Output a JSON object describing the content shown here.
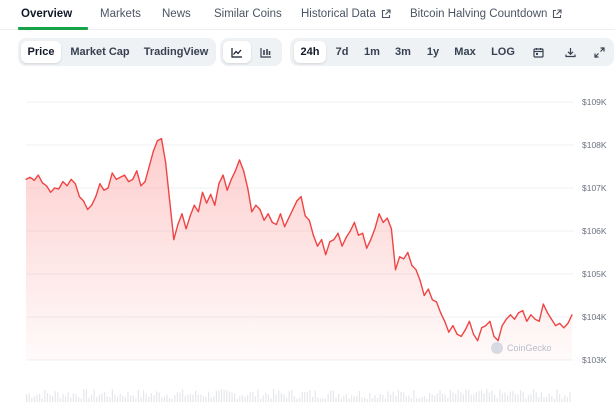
{
  "nav": {
    "tabs": [
      {
        "label": "Overview",
        "active": true
      },
      {
        "label": "Markets"
      },
      {
        "label": "News"
      },
      {
        "label": "Similar Coins"
      },
      {
        "label": "Historical Data",
        "external": true
      },
      {
        "label": "Bitcoin Halving Countdown",
        "external": true
      }
    ]
  },
  "toolbar": {
    "metric_tabs": [
      {
        "label": "Price",
        "active": true
      },
      {
        "label": "Market Cap"
      },
      {
        "label": "TradingView"
      }
    ],
    "chart_style": [
      {
        "icon": "line-chart-icon",
        "active": true
      },
      {
        "icon": "candlestick-chart-icon"
      }
    ],
    "ranges": [
      {
        "label": "24h",
        "active": true
      },
      {
        "label": "7d"
      },
      {
        "label": "1m"
      },
      {
        "label": "3m"
      },
      {
        "label": "1y"
      },
      {
        "label": "Max"
      },
      {
        "label": "LOG"
      }
    ],
    "actions": [
      "calendar-icon",
      "download-icon",
      "expand-icon"
    ]
  },
  "watermark": "CoinGecko",
  "colors": {
    "line": "#ef4444",
    "fill": "#fca5a5",
    "accent": "#16a34a"
  },
  "chart_data": {
    "type": "area",
    "yticks": [
      "$109K",
      "$108K",
      "$107K",
      "$106K",
      "$105K",
      "$104K",
      "$103K"
    ],
    "ylim": [
      103000,
      109000
    ],
    "grid": true,
    "legend": false,
    "values": [
      107200,
      107250,
      107180,
      107300,
      107120,
      107050,
      106900,
      107000,
      106980,
      107150,
      107050,
      107200,
      107100,
      106800,
      106700,
      106500,
      106600,
      106800,
      107100,
      106950,
      107000,
      107350,
      107200,
      107250,
      107300,
      107150,
      107200,
      107400,
      107050,
      107150,
      107500,
      107850,
      108100,
      108150,
      107600,
      106700,
      105800,
      106150,
      106400,
      106050,
      106350,
      106600,
      106450,
      106900,
      106650,
      106850,
      106600,
      107100,
      107300,
      106950,
      107200,
      107400,
      107650,
      107400,
      107000,
      106450,
      106600,
      106500,
      106250,
      106400,
      106200,
      106150,
      106400,
      106100,
      106300,
      106500,
      106700,
      106800,
      106350,
      106250,
      105900,
      105650,
      105800,
      105450,
      105750,
      105800,
      105950,
      105650,
      105850,
      106000,
      106200,
      105900,
      105950,
      105600,
      105800,
      106050,
      106400,
      106200,
      106300,
      106050,
      105100,
      105400,
      105350,
      105500,
      105200,
      105100,
      104850,
      104500,
      104650,
      104400,
      104350,
      104100,
      103900,
      103650,
      103800,
      103600,
      103550,
      103700,
      103900,
      103600,
      103450,
      103750,
      103800,
      103900,
      103550,
      103450,
      103800,
      103950,
      104050,
      103950,
      104100,
      104150,
      103900,
      104050,
      103950,
      103900,
      104300,
      104100,
      103950,
      103800,
      103850,
      103750,
      103850,
      104050
    ]
  }
}
